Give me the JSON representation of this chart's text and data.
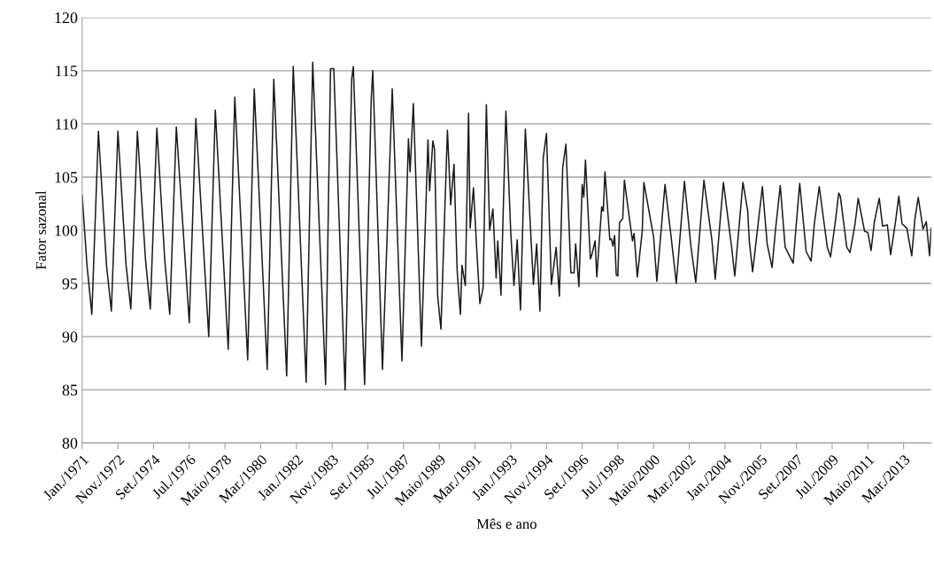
{
  "chart_data": {
    "type": "line",
    "xlabel": "Mês e ano",
    "ylabel": "Fator sazonal",
    "x": [
      "1971-01",
      "1971-04",
      "1971-07",
      "1971-11",
      "1972-04",
      "1972-07",
      "1972-11",
      "1973-04",
      "1973-07",
      "1973-11",
      "1974-04",
      "1974-07",
      "1974-11",
      "1975-04",
      "1975-07",
      "1975-11",
      "1976-07",
      "1976-11",
      "1977-07",
      "1977-11",
      "1978-07",
      "1978-11",
      "1979-07",
      "1979-11",
      "1980-07",
      "1980-11",
      "1981-07",
      "1981-11",
      "1982-07",
      "1982-11",
      "1983-07",
      "1983-10",
      "1983-12",
      "1984-07",
      "1984-11",
      "1984-12",
      "1985-07",
      "1985-11",
      "1985-12",
      "1986-06",
      "1986-11",
      "1986-12",
      "1987-06",
      "1987-10",
      "1987-11",
      "1988-01",
      "1988-06",
      "1988-10",
      "1988-11",
      "1989-01",
      "1989-02",
      "1989-04",
      "1989-06",
      "1989-10",
      "1989-12",
      "1990-02",
      "1990-04",
      "1990-06",
      "1990-07",
      "1990-09",
      "1990-11",
      "1990-12",
      "1991-02",
      "1991-04",
      "1991-06",
      "1991-08",
      "1991-10",
      "1991-12",
      "1992-02",
      "1992-04",
      "1992-05",
      "1992-07",
      "1992-10",
      "1993-01",
      "1993-03",
      "1993-05",
      "1993-07",
      "1993-10",
      "1994-03",
      "1994-05",
      "1994-07",
      "1994-09",
      "1994-11",
      "1995-02",
      "1995-05",
      "1995-07",
      "1995-09",
      "1995-11",
      "1996-02",
      "1996-04",
      "1996-05",
      "1996-07",
      "1996-09",
      "1996-10",
      "1996-11",
      "1997-02",
      "1997-03",
      "1997-05",
      "1997-06",
      "1997-09",
      "1997-10",
      "1997-11",
      "1998-02",
      "1998-03",
      "1998-04",
      "1998-05",
      "1998-06",
      "1998-07",
      "1998-08",
      "1998-10",
      "1998-11",
      "1999-02",
      "1999-04",
      "1999-05",
      "1999-07",
      "1999-10",
      "1999-11",
      "2000-03",
      "2000-05",
      "2000-07",
      "2000-12",
      "2001-04",
      "2001-07",
      "2001-12",
      "2002-04",
      "2002-07",
      "2002-12",
      "2003-05",
      "2003-07",
      "2003-12",
      "2004-05",
      "2004-07",
      "2004-12",
      "2005-03",
      "2005-04",
      "2005-06",
      "2005-12",
      "2006-03",
      "2006-06",
      "2006-08",
      "2006-11",
      "2007-02",
      "2007-07",
      "2007-09",
      "2007-11",
      "2008-03",
      "2008-06",
      "2008-08",
      "2008-11",
      "2009-04",
      "2009-06",
      "2009-09",
      "2009-11",
      "2009-12",
      "2010-04",
      "2010-06",
      "2010-09",
      "2010-11",
      "2011-03",
      "2011-05",
      "2011-07",
      "2011-09",
      "2011-12",
      "2012-02",
      "2012-05",
      "2012-07",
      "2012-10",
      "2012-12",
      "2013-02",
      "2013-05",
      "2013-08",
      "2013-10",
      "2013-12",
      "2014-03",
      "2014-05",
      "2014-07",
      "2014-08"
    ],
    "series": [
      {
        "color": "#1a1a1a",
        "values": [
          103.3,
          96.7,
          92.1,
          109.3,
          96.7,
          92.4,
          109.3,
          96.8,
          92.6,
          109.3,
          97.3,
          92.6,
          109.6,
          97.0,
          92.1,
          109.7,
          91.3,
          110.5,
          90.0,
          111.3,
          88.8,
          112.5,
          87.8,
          113.3,
          86.9,
          114.2,
          86.3,
          115.4,
          85.7,
          115.8,
          85.5,
          115.2,
          115.2,
          85.0,
          114.2,
          115.4,
          85.5,
          112.2,
          115.0,
          86.9,
          108.9,
          113.3,
          87.7,
          108.6,
          105.5,
          111.9,
          89.1,
          108.5,
          103.7,
          108.4,
          107.6,
          93.8,
          90.7,
          109.4,
          102.4,
          106.2,
          96.2,
          92.1,
          96.7,
          94.8,
          111.0,
          100.2,
          104.0,
          98.4,
          93.1,
          94.6,
          111.8,
          100.0,
          102.0,
          95.5,
          99.0,
          93.9,
          111.2,
          99.7,
          94.8,
          99.1,
          92.5,
          109.5,
          94.9,
          98.7,
          92.4,
          106.8,
          109.1,
          94.9,
          98.4,
          93.8,
          105.9,
          108.1,
          96.0,
          96.0,
          98.7,
          94.7,
          104.3,
          103.1,
          106.6,
          97.3,
          97.7,
          99.0,
          95.6,
          102.2,
          101.8,
          105.5,
          99.1,
          99.2,
          98.5,
          99.5,
          95.8,
          95.7,
          100.7,
          101.1,
          104.7,
          101.2,
          99.0,
          99.7,
          95.6,
          99.9,
          104.5,
          101.1,
          99.4,
          95.2,
          104.3,
          99.1,
          95.0,
          104.6,
          98.5,
          95.1,
          104.7,
          99.0,
          95.4,
          104.5,
          98.5,
          95.7,
          104.5,
          101.8,
          98.9,
          96.1,
          104.1,
          98.7,
          96.5,
          99.9,
          104.2,
          98.4,
          96.9,
          100.8,
          104.4,
          98.0,
          97.1,
          100.6,
          104.1,
          98.4,
          97.5,
          100.9,
          103.5,
          103.2,
          98.4,
          97.9,
          100.5,
          103.0,
          99.9,
          99.8,
          98.1,
          100.8,
          103.0,
          100.4,
          100.5,
          97.7,
          100.8,
          103.2,
          100.6,
          100.2,
          97.6,
          101.1,
          103.1,
          100.1,
          100.8,
          97.6,
          100.2
        ]
      }
    ],
    "xlim": [
      "1971-01",
      "2014-08"
    ],
    "xticks": [
      {
        "value": "1971-01",
        "label": "Jan./1971"
      },
      {
        "value": "1972-11",
        "label": "Nov./1972"
      },
      {
        "value": "1974-09",
        "label": "Set./1974"
      },
      {
        "value": "1976-07",
        "label": "Jul./1976"
      },
      {
        "value": "1978-05",
        "label": "Maio/1978"
      },
      {
        "value": "1980-03",
        "label": "Mar./1980"
      },
      {
        "value": "1982-01",
        "label": "Jan./1982"
      },
      {
        "value": "1983-11",
        "label": "Nov./1983"
      },
      {
        "value": "1985-09",
        "label": "Set./1985"
      },
      {
        "value": "1987-07",
        "label": "Jul./1987"
      },
      {
        "value": "1989-05",
        "label": "Maio/1989"
      },
      {
        "value": "1991-03",
        "label": "Mar./1991"
      },
      {
        "value": "1993-01",
        "label": "Jan./1993"
      },
      {
        "value": "1994-11",
        "label": "Nov./1994"
      },
      {
        "value": "1996-09",
        "label": "Set./1996"
      },
      {
        "value": "1998-07",
        "label": "Jul./1998"
      },
      {
        "value": "2000-05",
        "label": "Maio/2000"
      },
      {
        "value": "2002-03",
        "label": "Mar./2002"
      },
      {
        "value": "2004-01",
        "label": "Jan./2004"
      },
      {
        "value": "2005-11",
        "label": "Nov./2005"
      },
      {
        "value": "2007-09",
        "label": "Set./2007"
      },
      {
        "value": "2009-07",
        "label": "Jul./2009"
      },
      {
        "value": "2011-05",
        "label": "Maio/2011"
      },
      {
        "value": "2013-03",
        "label": "Mar./2013"
      }
    ],
    "ylim": [
      80,
      120
    ],
    "yticks": [
      80,
      85,
      90,
      95,
      100,
      105,
      110,
      115,
      120
    ],
    "grid": "y",
    "marker": "none",
    "line_style": "solid"
  }
}
